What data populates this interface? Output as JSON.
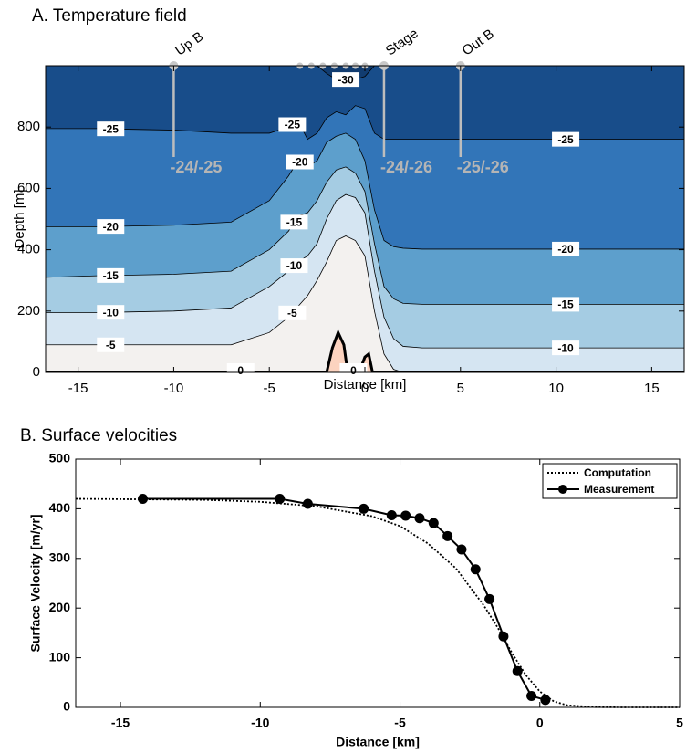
{
  "chart_data": [
    {
      "type": "contour",
      "title": "A. Temperature field",
      "xlabel": "Distance [km]",
      "ylabel": "Depth [m]",
      "xlim": [
        -16.7,
        16.7
      ],
      "ylim": [
        0,
        1000
      ],
      "xticks": [
        -15,
        -10,
        -5,
        0,
        5,
        10,
        15
      ],
      "yticks": [
        0,
        200,
        400,
        600,
        800
      ],
      "base_color": "#fcd3bf",
      "series": [
        {
          "name": "0",
          "color": "#f3f1ef",
          "line_width": 3,
          "label_x": [
            -6.5,
            -0.6
          ],
          "x": [
            -16.7,
            -2,
            -1.7,
            -1.4,
            -1.1,
            -0.9,
            -0.3,
            0,
            0.2,
            0.4,
            16.7
          ],
          "values": [
            0,
            0,
            80,
            130,
            90,
            0,
            0,
            50,
            60,
            0,
            0
          ]
        },
        {
          "name": "-5",
          "color": "#d5e5f2",
          "line_width": 0.8,
          "label_x": [
            -13.3,
            -3.8
          ],
          "x": [
            -16.7,
            -14,
            -10,
            -7,
            -5,
            -4,
            -3.5,
            -3,
            -2.5,
            -2,
            -1.5,
            -1,
            -0.5,
            0,
            0.5,
            1,
            1.5,
            2,
            3,
            5,
            10,
            16.7
          ],
          "values": [
            90,
            90,
            90,
            90,
            130,
            180,
            215,
            250,
            300,
            360,
            430,
            445,
            430,
            380,
            200,
            60,
            10,
            0,
            0,
            0,
            0,
            0
          ]
        },
        {
          "name": "-10",
          "color": "#a5cce3",
          "line_width": 0.8,
          "label_x": [
            -13.3,
            -3.7,
            10.5
          ],
          "x": [
            -16.7,
            -14,
            -10,
            -7,
            -5,
            -4,
            -3.5,
            -3,
            -2.5,
            -2,
            -1.5,
            -1,
            -0.5,
            0,
            0.5,
            1,
            1.5,
            2,
            3,
            5,
            10,
            16.7
          ],
          "values": [
            195,
            195,
            200,
            210,
            280,
            330,
            360,
            380,
            420,
            500,
            560,
            580,
            570,
            520,
            330,
            180,
            110,
            85,
            80,
            80,
            80,
            80
          ]
        },
        {
          "name": "-15",
          "color": "#5d9fcc",
          "line_width": 0.8,
          "label_x": [
            -13.3,
            -3.7,
            10.5
          ],
          "x": [
            -16.7,
            -14,
            -10,
            -7,
            -5,
            -4,
            -3.5,
            -3,
            -2.5,
            -2,
            -1.5,
            -1,
            -0.5,
            0,
            0.5,
            1,
            1.5,
            2,
            3,
            5,
            10,
            16.7
          ],
          "values": [
            310,
            315,
            320,
            330,
            400,
            460,
            510,
            520,
            560,
            620,
            660,
            670,
            650,
            590,
            420,
            280,
            240,
            225,
            222,
            222,
            222,
            222
          ]
        },
        {
          "name": "-20",
          "color": "#3275b8",
          "line_width": 0.8,
          "label_x": [
            -13.3,
            -3.4,
            10.5
          ],
          "x": [
            -16.7,
            -14,
            -10,
            -7,
            -5,
            -4,
            -3.5,
            -3,
            -2.5,
            -2,
            -1.5,
            -1,
            -0.5,
            0,
            0.5,
            1,
            1.5,
            2,
            3,
            5,
            10,
            16.7
          ],
          "values": [
            475,
            475,
            480,
            490,
            560,
            640,
            690,
            670,
            690,
            750,
            770,
            780,
            760,
            690,
            530,
            430,
            410,
            405,
            402,
            402,
            402,
            402
          ]
        },
        {
          "name": "-25",
          "color": "#184d8a",
          "line_width": 0.8,
          "label_x": [
            -13.3,
            -3.8,
            10.5
          ],
          "x": [
            -16.7,
            -14,
            -10,
            -7,
            -5,
            -4,
            -3.5,
            -3,
            -2.5,
            -2,
            -1.5,
            -1,
            -0.5,
            0,
            0.5,
            1,
            1.5,
            2,
            3,
            5,
            10,
            16.7
          ],
          "values": [
            795,
            795,
            790,
            780,
            780,
            800,
            820,
            760,
            780,
            830,
            850,
            840,
            870,
            860,
            780,
            760,
            760,
            760,
            760,
            760,
            760,
            760
          ]
        },
        {
          "name": "-30",
          "color": "#113c70",
          "line_width": 0.8,
          "label_x": [
            -1
          ],
          "x": [
            -16.7,
            -2.5,
            -2,
            -1.5,
            -0.5,
            0,
            0.5,
            16.7
          ],
          "values": [
            1000,
            1000,
            975,
            955,
            955,
            965,
            1000,
            1000
          ]
        }
      ],
      "stations": [
        {
          "name": "Up B",
          "x": -10,
          "label": "-24/-25"
        },
        {
          "name": "Stage",
          "x": 1,
          "label": "-24/-26"
        },
        {
          "name": "Out B",
          "x": 5,
          "label": "-25/-26"
        }
      ],
      "gps_x": [
        -3.4,
        -2.8,
        -2.2,
        -1.6,
        -1,
        -0.5,
        0
      ]
    },
    {
      "type": "line",
      "title": "B. Surface velocities",
      "xlabel": "Distance [km]",
      "ylabel": "Surface Velocity [m/yr]",
      "xlim": [
        -16.6,
        5
      ],
      "ylim": [
        0,
        500
      ],
      "xticks": [
        -15,
        -10,
        -5,
        0,
        5
      ],
      "yticks": [
        0,
        100,
        200,
        300,
        400,
        500
      ],
      "legend": "upper right",
      "series": [
        {
          "name": "Computation",
          "color": "#000000",
          "dash": "dotted",
          "marker": false,
          "x": [
            -16.6,
            -12,
            -10,
            -8,
            -6,
            -5,
            -4,
            -3,
            -2,
            -1.5,
            -1,
            -0.5,
            0,
            0.5,
            1,
            2,
            3,
            5
          ],
          "values": [
            420,
            418,
            414,
            405,
            385,
            365,
            330,
            280,
            205,
            160,
            110,
            65,
            32,
            12,
            4,
            0.5,
            0,
            0
          ]
        },
        {
          "name": "Measurement",
          "color": "#000000",
          "dash": "solid",
          "marker": true,
          "x": [
            -14.2,
            -9.3,
            -8.3,
            -6.3,
            -5.3,
            -4.8,
            -4.3,
            -3.8,
            -3.3,
            -2.8,
            -2.3,
            -1.8,
            -1.3,
            -0.8,
            -0.3,
            0.2
          ],
          "values": [
            420,
            420,
            410,
            400,
            387,
            386,
            381,
            371,
            345,
            318,
            278,
            218,
            143,
            73,
            23,
            15
          ]
        }
      ]
    }
  ]
}
